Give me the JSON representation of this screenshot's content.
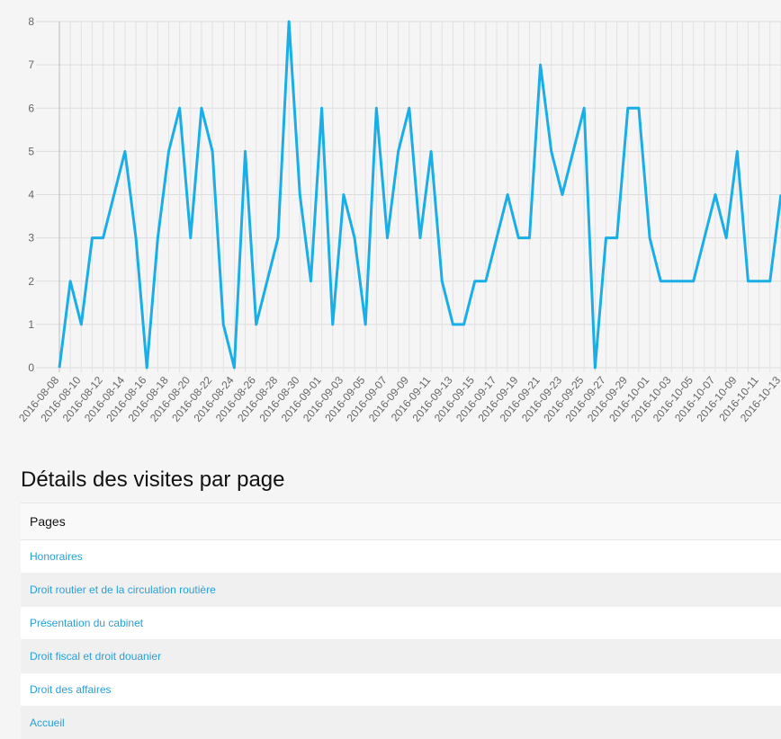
{
  "chart_data": {
    "type": "line",
    "title": "",
    "xlabel": "",
    "ylabel": "",
    "ylim": [
      0,
      8
    ],
    "yticks": [
      0,
      1,
      2,
      3,
      4,
      5,
      6,
      7,
      8
    ],
    "grid": true,
    "legend": "none",
    "line_color": "#1aaee6",
    "x_tick_labels": [
      "2016-08-08",
      "2016-08-10",
      "2016-08-12",
      "2016-08-14",
      "2016-08-16",
      "2016-08-18",
      "2016-08-20",
      "2016-08-22",
      "2016-08-24",
      "2016-08-26",
      "2016-08-28",
      "2016-08-30",
      "2016-09-01",
      "2016-09-03",
      "2016-09-05",
      "2016-09-07",
      "2016-09-09",
      "2016-09-11",
      "2016-09-13",
      "2016-09-15",
      "2016-09-17",
      "2016-09-19",
      "2016-09-21",
      "2016-09-23",
      "2016-09-25",
      "2016-09-27",
      "2016-09-29",
      "2016-10-01",
      "2016-10-03",
      "2016-10-05",
      "2016-10-07",
      "2016-10-09",
      "2016-10-11",
      "2016-10-13"
    ],
    "x_start": "2016-08-08",
    "series": [
      {
        "values": [
          0,
          2,
          1,
          3,
          3,
          4,
          5,
          3,
          0,
          3,
          5,
          6,
          3,
          6,
          5,
          1,
          0,
          5,
          1,
          2,
          3,
          8,
          4,
          2,
          6,
          1,
          4,
          3,
          1,
          6,
          3,
          5,
          6,
          3,
          5,
          2,
          1,
          1,
          2,
          2,
          3,
          4,
          3,
          3,
          7,
          5,
          4,
          5,
          6,
          0,
          3,
          3,
          6,
          6,
          3,
          2,
          2,
          2,
          2,
          3,
          4,
          3,
          5,
          2,
          2,
          2,
          4
        ]
      }
    ]
  },
  "details": {
    "title": "Détails des visites par page",
    "header": "Pages",
    "pages": [
      "Honoraires",
      "Droit routier et de la circulation routière",
      "Présentation du cabinet",
      "Droit fiscal et droit douanier",
      "Droit des affaires",
      "Accueil"
    ]
  }
}
